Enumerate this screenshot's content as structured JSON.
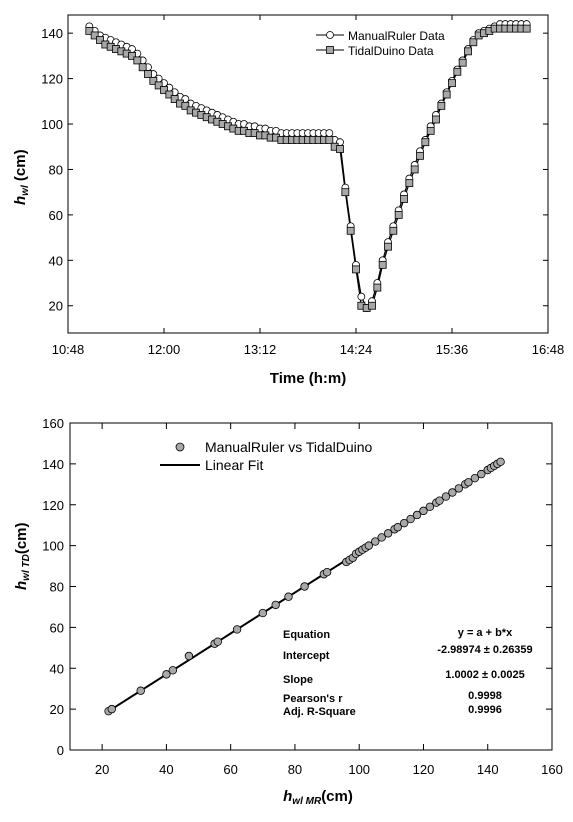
{
  "chart_data": [
    {
      "type": "line",
      "x_label_main": "Time (h:m)",
      "y_label_main": "h",
      "y_label_sub": "wl",
      "y_label_unit": " (cm)",
      "x_ticks": [
        "10:48",
        "12:00",
        "13:12",
        "14:24",
        "15:36",
        "16:48"
      ],
      "x_tick_minutes": [
        648,
        720,
        792,
        864,
        936,
        1008
      ],
      "xlim_minutes": [
        648,
        1008
      ],
      "y_ticks": [
        "20",
        "40",
        "60",
        "80",
        "100",
        "120",
        "140"
      ],
      "y_tick_values": [
        20,
        40,
        60,
        80,
        100,
        120,
        140
      ],
      "ylim": [
        8,
        148
      ],
      "legend_position": "top-right",
      "series": [
        {
          "name": "ManualRuler Data",
          "marker": "circle",
          "color": "#000000",
          "fill": "#ffffff",
          "x_minutes": [
            664,
            668,
            672,
            676,
            680,
            684,
            688,
            692,
            696,
            700,
            704,
            708,
            712,
            716,
            720,
            724,
            728,
            732,
            736,
            740,
            744,
            748,
            752,
            756,
            760,
            764,
            768,
            772,
            776,
            780,
            784,
            788,
            792,
            796,
            800,
            804,
            808,
            812,
            816,
            820,
            824,
            828,
            832,
            836,
            840,
            844,
            848,
            852,
            856,
            860,
            864,
            868,
            872,
            876,
            880,
            884,
            888,
            892,
            896,
            900,
            904,
            908,
            912,
            916,
            920,
            924,
            928,
            932,
            936,
            940,
            944,
            948,
            952,
            956,
            960,
            964,
            968,
            972,
            976,
            980,
            984,
            988,
            992
          ],
          "y": [
            143,
            141,
            139,
            138,
            137,
            136,
            135,
            134,
            133,
            131,
            128,
            125,
            122,
            120,
            118,
            116,
            114,
            112,
            111,
            109,
            108,
            107,
            106,
            105,
            104,
            103,
            102,
            101,
            100,
            100,
            99,
            99,
            98,
            98,
            97,
            97,
            96,
            96,
            96,
            96,
            96,
            96,
            96,
            96,
            96,
            96,
            93,
            92,
            72,
            55,
            38,
            24,
            19,
            22,
            30,
            40,
            48,
            55,
            62,
            69,
            76,
            82,
            88,
            93,
            99,
            104,
            109,
            114,
            119,
            124,
            128,
            133,
            137,
            140,
            141,
            142,
            143,
            144,
            144,
            144,
            144,
            144,
            144
          ]
        },
        {
          "name": "TidalDuino Data",
          "marker": "square",
          "color": "#000000",
          "fill": "#a8a8a8",
          "x_minutes": [
            664,
            668,
            672,
            676,
            680,
            684,
            688,
            692,
            696,
            700,
            704,
            708,
            712,
            716,
            720,
            724,
            728,
            732,
            736,
            740,
            744,
            748,
            752,
            756,
            760,
            764,
            768,
            772,
            776,
            780,
            784,
            788,
            792,
            796,
            800,
            804,
            808,
            812,
            816,
            820,
            824,
            828,
            832,
            836,
            840,
            844,
            848,
            852,
            856,
            860,
            864,
            868,
            872,
            876,
            880,
            884,
            888,
            892,
            896,
            900,
            904,
            908,
            912,
            916,
            920,
            924,
            928,
            932,
            936,
            940,
            944,
            948,
            952,
            956,
            960,
            964,
            968,
            972,
            976,
            980,
            984,
            988,
            992
          ],
          "y": [
            141,
            139,
            137,
            135,
            134,
            133,
            132,
            131,
            130,
            128,
            125,
            122,
            119,
            117,
            115,
            113,
            111,
            109,
            108,
            106,
            105,
            104,
            103,
            102,
            101,
            100,
            99,
            98,
            97,
            97,
            96,
            96,
            95,
            95,
            94,
            94,
            93,
            93,
            93,
            93,
            93,
            93,
            93,
            93,
            93,
            93,
            90,
            89,
            70,
            53,
            36,
            20,
            19,
            20,
            28,
            38,
            46,
            53,
            60,
            67,
            74,
            80,
            86,
            92,
            97,
            102,
            108,
            113,
            118,
            123,
            127,
            132,
            136,
            139,
            140,
            141,
            142,
            142,
            142,
            142,
            142,
            142,
            142
          ]
        }
      ]
    },
    {
      "type": "scatter",
      "x_label_main": "h",
      "x_label_sub": "wl MR",
      "x_label_unit": "(cm)",
      "y_label_main": "h",
      "y_label_sub": "wl TD",
      "y_label_unit": "(cm)",
      "xlim": [
        10,
        160
      ],
      "ylim": [
        0,
        160
      ],
      "x_ticks": [
        "20",
        "40",
        "60",
        "80",
        "100",
        "120",
        "140",
        "160"
      ],
      "x_tick_values": [
        20,
        40,
        60,
        80,
        100,
        120,
        140,
        160
      ],
      "y_ticks": [
        "0",
        "20",
        "40",
        "60",
        "80",
        "100",
        "120",
        "140",
        "160"
      ],
      "y_tick_values": [
        0,
        20,
        40,
        60,
        80,
        100,
        120,
        140,
        160
      ],
      "legend_position": "top-center",
      "series": [
        {
          "name": "ManualRuler vs TidalDuino",
          "marker": "circle",
          "color": "#000000",
          "fill": "#a8a8a8",
          "x": [
            22,
            23,
            32,
            40,
            42,
            47,
            55,
            56,
            62,
            70,
            74,
            78,
            83,
            89,
            90,
            96,
            97,
            98,
            99,
            100,
            101,
            102,
            103,
            105,
            107,
            109,
            111,
            112,
            114,
            116,
            118,
            120,
            122,
            124,
            125,
            127,
            129,
            131,
            133,
            134,
            136,
            138,
            140,
            141,
            142,
            143,
            144
          ],
          "y": [
            19,
            20,
            29,
            37,
            39,
            46,
            52,
            53,
            59,
            67,
            71,
            75,
            80,
            86,
            87,
            92,
            93,
            94,
            96,
            97,
            98,
            99,
            100,
            102,
            104,
            106,
            108,
            109,
            111,
            113,
            115,
            117,
            119,
            121,
            122,
            124,
            126,
            128,
            130,
            131,
            133,
            135,
            137,
            138,
            139,
            140,
            141
          ]
        }
      ],
      "fit": {
        "name": "Linear Fit",
        "color": "#000000",
        "x_range": [
          21,
          145
        ],
        "intercept": -2.98974,
        "slope": 1.0002
      },
      "stats": {
        "equation_label": "Equation",
        "equation_value": "y = a + b*x",
        "intercept_label": "Intercept",
        "intercept_value": "-2.98974 ± 0.26359",
        "slope_label": "Slope",
        "slope_value": "1.0002 ± 0.0025",
        "pearson_label": "Pearson's r",
        "pearson_value": "0.9998",
        "r2_label": "Adj. R-Square",
        "r2_value": "0.9996"
      }
    }
  ]
}
